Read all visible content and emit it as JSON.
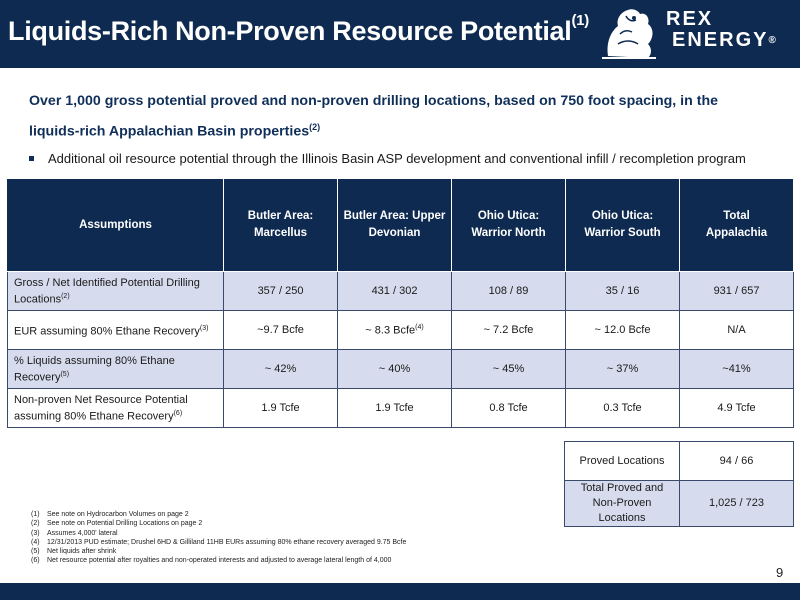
{
  "header": {
    "title": "Liquids-Rich Non-Proven Resource Potential",
    "title_sup": "(1)",
    "logo_line1": "REX",
    "logo_line2": "ENERGY",
    "logo_reg": "®",
    "background": "#0e2a50"
  },
  "lead": {
    "text": "Over 1,000 gross potential proved and non-proven drilling locations, based on 750 foot spacing, in the liquids-rich Appalachian Basin properties",
    "sup": "(2)"
  },
  "bullet": "Additional oil resource potential through the Illinois Basin ASP development and conventional infill / recompletion program",
  "table": {
    "headers": [
      [
        "Assumptions"
      ],
      [
        "Butler Area:",
        "Marcellus"
      ],
      [
        "Butler Area: Upper",
        "Devonian"
      ],
      [
        "Ohio Utica:",
        "Warrior North"
      ],
      [
        "Ohio Utica:",
        "Warrior South"
      ],
      [
        "Total",
        "Appalachia"
      ]
    ],
    "rows": [
      {
        "label": "Gross / Net Identified Potential Drilling Locations",
        "label_sup": "(2)",
        "values": [
          "357 / 250",
          "431 / 302",
          "108 / 89",
          "35 / 16",
          "931 / 657"
        ]
      },
      {
        "label": "EUR assuming 80% Ethane Recovery",
        "label_sup": "(3)",
        "values": [
          "~9.7 Bcfe",
          "~ 8.3 Bcfe",
          "~ 7.2 Bcfe",
          "~ 12.0 Bcfe",
          "N/A"
        ],
        "value_sup": "(4)"
      },
      {
        "label": "% Liquids assuming 80% Ethane Recovery",
        "label_sup": "(5)",
        "values": [
          "~ 42%",
          "~ 40%",
          "~ 45%",
          "~ 37%",
          "~41%"
        ]
      },
      {
        "label": "Non-proven Net Resource Potential assuming 80% Ethane Recovery",
        "label_sup": "(6)",
        "values": [
          "1.9 Tcfe",
          "1.9 Tcfe",
          "0.8 Tcfe",
          "0.3 Tcfe",
          "4.9 Tcfe"
        ]
      }
    ]
  },
  "summary": [
    {
      "label": "Proved Locations",
      "value": "94 / 66"
    },
    {
      "label": "Total Proved and Non-Proven Locations",
      "value": "1,025 / 723"
    }
  ],
  "footnotes": [
    {
      "num": "(1)",
      "text": "See note on Hydrocarbon Volumes on page 2"
    },
    {
      "num": "(2)",
      "text": "See note on Potential Drilling Locations on page 2"
    },
    {
      "num": "(3)",
      "text": "Assumes 4,000' lateral"
    },
    {
      "num": "(4)",
      "text": "12/31/2013 PUD estimate; Drushel 6HD & Gilliland 11HB EURs assuming 80% ethane recovery averaged 9.75 Bcfe"
    },
    {
      "num": "(5)",
      "text": "Net liquids after shrink"
    },
    {
      "num": "(6)",
      "text": "Net resource potential after royalties and non-operated interests and adjusted to average lateral length of 4,000"
    }
  ],
  "page_number": "9",
  "colors": {
    "navy": "#0e2a50",
    "row_alt": "#d6dced",
    "lead_text": "#0f2f59"
  }
}
